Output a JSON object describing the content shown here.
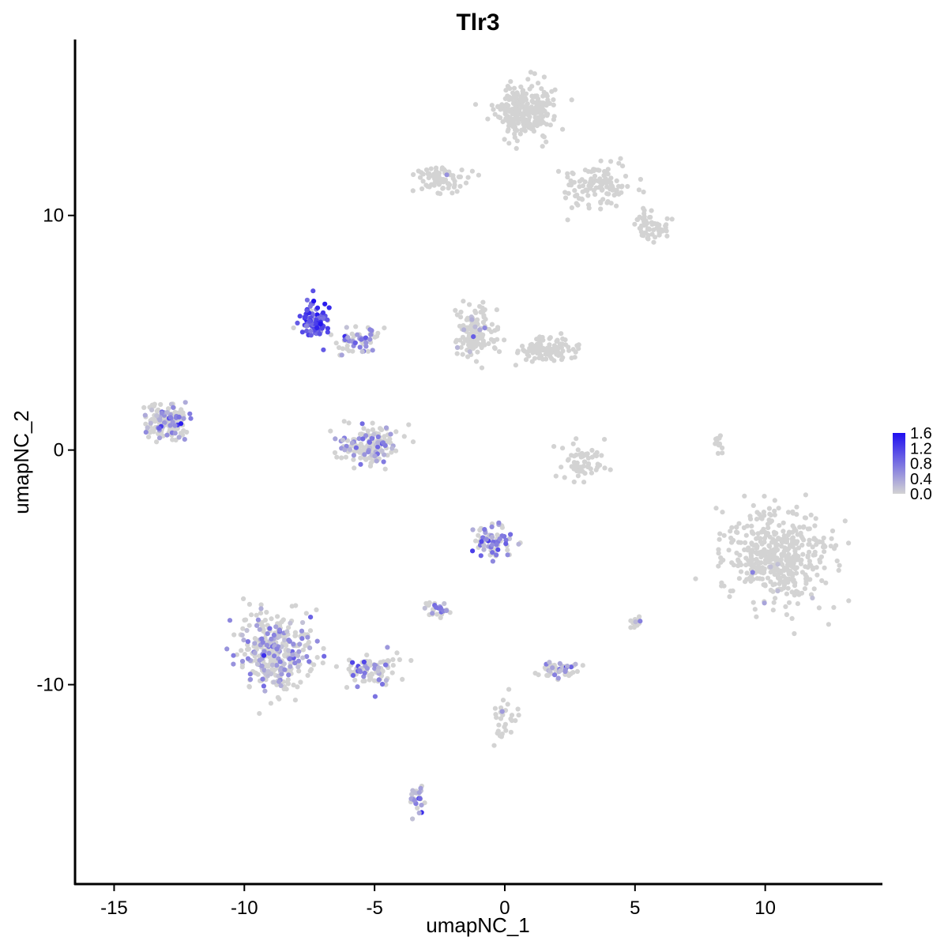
{
  "chart_data": {
    "type": "scatter",
    "title": "Tlr3",
    "xlabel": "umapNC_1",
    "ylabel": "umapNC_2",
    "xlim": [
      -16.5,
      14.5
    ],
    "ylim": [
      -18.5,
      17.5
    ],
    "x_ticks": [
      -15,
      -10,
      -5,
      0,
      5,
      10
    ],
    "x_tick_labels": [
      "-15",
      "-10",
      "-5",
      "0",
      "5",
      "10"
    ],
    "y_ticks": [
      -10,
      0,
      10
    ],
    "y_tick_labels": [
      "-10",
      "0",
      "10"
    ],
    "grid": false,
    "legend": {
      "type": "colorbar",
      "placement": "right",
      "min": 0.0,
      "max": 1.6,
      "ticks": [
        1.6,
        1.2,
        0.8,
        0.4,
        0.0
      ],
      "tick_labels": [
        "1.6",
        "1.2",
        "0.8",
        "0.4",
        "0.0"
      ]
    },
    "colors": {
      "low": "#d3d3d3",
      "high": "#1f0ff0"
    },
    "clusters": [
      {
        "cx": 0.8,
        "cy": 14.5,
        "sx": 1.0,
        "sy": 1.0,
        "n": 260,
        "frac": 0.0,
        "mean": 0.0
      },
      {
        "cx": 3.6,
        "cy": 11.3,
        "sx": 1.2,
        "sy": 1.0,
        "n": 120,
        "frac": 0.0,
        "mean": 0.0
      },
      {
        "cx": -2.5,
        "cy": 11.6,
        "sx": 0.9,
        "sy": 0.5,
        "n": 70,
        "frac": 0.02,
        "mean": 0.3
      },
      {
        "cx": 5.6,
        "cy": 9.5,
        "sx": 0.6,
        "sy": 0.6,
        "n": 60,
        "frac": 0.0,
        "mean": 0.0
      },
      {
        "cx": -7.3,
        "cy": 5.5,
        "sx": 0.45,
        "sy": 0.6,
        "n": 110,
        "frac": 0.9,
        "mean": 1.1
      },
      {
        "cx": -5.8,
        "cy": 4.7,
        "sx": 0.9,
        "sy": 0.6,
        "n": 60,
        "frac": 0.4,
        "mean": 0.5
      },
      {
        "cx": -1.1,
        "cy": 5.0,
        "sx": 0.7,
        "sy": 1.0,
        "n": 140,
        "frac": 0.05,
        "mean": 0.4
      },
      {
        "cx": 1.6,
        "cy": 4.3,
        "sx": 1.0,
        "sy": 0.5,
        "n": 110,
        "frac": 0.0,
        "mean": 0.0
      },
      {
        "cx": -13.0,
        "cy": 1.2,
        "sx": 0.8,
        "sy": 0.7,
        "n": 150,
        "frac": 0.35,
        "mean": 0.5
      },
      {
        "cx": -5.2,
        "cy": 0.2,
        "sx": 1.0,
        "sy": 0.7,
        "n": 160,
        "frac": 0.3,
        "mean": 0.45
      },
      {
        "cx": 3.0,
        "cy": -0.5,
        "sx": 0.8,
        "sy": 0.7,
        "n": 60,
        "frac": 0.03,
        "mean": 0.4
      },
      {
        "cx": 10.5,
        "cy": -4.5,
        "sx": 1.8,
        "sy": 1.8,
        "n": 450,
        "frac": 0.01,
        "mean": 0.4
      },
      {
        "cx": -0.5,
        "cy": -3.9,
        "sx": 0.7,
        "sy": 0.6,
        "n": 80,
        "frac": 0.5,
        "mean": 0.6
      },
      {
        "cx": -8.8,
        "cy": -8.5,
        "sx": 1.3,
        "sy": 1.5,
        "n": 340,
        "frac": 0.35,
        "mean": 0.45
      },
      {
        "cx": -5.2,
        "cy": -9.4,
        "sx": 1.0,
        "sy": 0.6,
        "n": 90,
        "frac": 0.35,
        "mean": 0.5
      },
      {
        "cx": -2.6,
        "cy": -6.8,
        "sx": 0.4,
        "sy": 0.3,
        "n": 30,
        "frac": 0.55,
        "mean": 0.55
      },
      {
        "cx": 2.1,
        "cy": -9.4,
        "sx": 0.7,
        "sy": 0.3,
        "n": 50,
        "frac": 0.4,
        "mean": 0.5
      },
      {
        "cx": 0.0,
        "cy": -11.5,
        "sx": 0.4,
        "sy": 1.0,
        "n": 30,
        "frac": 0.1,
        "mean": 0.4
      },
      {
        "cx": -3.4,
        "cy": -14.8,
        "sx": 0.25,
        "sy": 0.6,
        "n": 30,
        "frac": 0.5,
        "mean": 0.6
      },
      {
        "cx": 8.2,
        "cy": 0.3,
        "sx": 0.12,
        "sy": 0.5,
        "n": 12,
        "frac": 0.0,
        "mean": 0.0
      },
      {
        "cx": 5.0,
        "cy": -7.4,
        "sx": 0.3,
        "sy": 0.2,
        "n": 12,
        "frac": 0.1,
        "mean": 0.4
      }
    ]
  }
}
